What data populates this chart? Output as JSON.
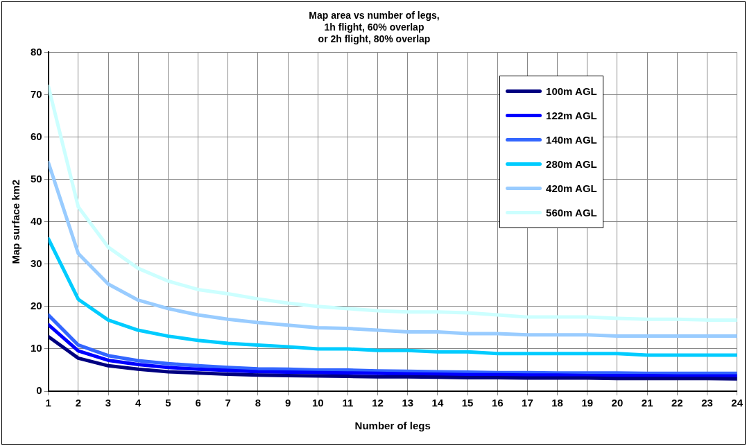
{
  "chart_data": {
    "type": "line",
    "title": "Map area vs number of legs,\n1h flight, 60% overlap\nor 2h flight, 80% overlap",
    "xlabel": "Number of legs",
    "ylabel": "Map surface km2",
    "x": [
      1,
      2,
      3,
      4,
      5,
      6,
      7,
      8,
      9,
      10,
      11,
      12,
      13,
      14,
      15,
      16,
      17,
      18,
      19,
      20,
      21,
      22,
      23,
      24
    ],
    "xlim": [
      1,
      24
    ],
    "xticks": [
      1,
      2,
      3,
      4,
      5,
      6,
      7,
      8,
      9,
      10,
      11,
      12,
      13,
      14,
      15,
      16,
      17,
      18,
      19,
      20,
      21,
      22,
      23,
      24
    ],
    "ylim": [
      0,
      80
    ],
    "yticks": [
      0,
      10,
      20,
      30,
      40,
      50,
      60,
      70,
      80
    ],
    "grid": true,
    "legend": "top right",
    "marker": "none",
    "line_style": "solid",
    "series": [
      {
        "name": "100m AGL",
        "color": "#000080",
        "values": [
          12.9,
          7.8,
          6.0,
          5.2,
          4.6,
          4.3,
          4.0,
          3.8,
          3.7,
          3.6,
          3.5,
          3.4,
          3.4,
          3.3,
          3.2,
          3.2,
          3.1,
          3.1,
          3.1,
          3.0,
          3.0,
          3.0,
          3.0,
          2.9
        ]
      },
      {
        "name": "122m AGL",
        "color": "#0000ff",
        "values": [
          15.7,
          9.5,
          7.3,
          6.3,
          5.6,
          5.2,
          4.9,
          4.6,
          4.5,
          4.4,
          4.3,
          4.2,
          4.1,
          4.0,
          3.9,
          3.9,
          3.8,
          3.8,
          3.7,
          3.7,
          3.7,
          3.6,
          3.6,
          3.6
        ]
      },
      {
        "name": "140m AGL",
        "color": "#3366ff",
        "values": [
          18,
          10.9,
          8.4,
          7.2,
          6.5,
          6.0,
          5.6,
          5.3,
          5.2,
          5.0,
          5.0,
          4.8,
          4.7,
          4.6,
          4.5,
          4.4,
          4.4,
          4.3,
          4.3,
          4.3,
          4.2,
          4.2,
          4.2,
          4.2
        ]
      },
      {
        "name": "280m AGL",
        "color": "#00ccff",
        "values": [
          36,
          21.7,
          16.8,
          14.4,
          13,
          12,
          11.3,
          10.9,
          10.5,
          10,
          10,
          9.6,
          9.6,
          9.3,
          9.3,
          8.9,
          8.9,
          8.9,
          8.9,
          8.9,
          8.5,
          8.5,
          8.5,
          8.5
        ]
      },
      {
        "name": "420m AGL",
        "color": "#99ccff",
        "values": [
          54,
          32.5,
          25.3,
          21.5,
          19.5,
          18,
          17,
          16.2,
          15.6,
          15,
          14.8,
          14.4,
          14,
          14,
          13.6,
          13.6,
          13.3,
          13.3,
          13.3,
          13,
          13,
          13,
          13,
          13
        ]
      },
      {
        "name": "560m AGL",
        "color": "#ccffff",
        "values": [
          72,
          43.5,
          34,
          29,
          26,
          24,
          23,
          21.8,
          20.8,
          20,
          19.5,
          19,
          18.7,
          18.7,
          18.5,
          18,
          17.5,
          17.5,
          17.5,
          17.2,
          17,
          17,
          16.8,
          16.8
        ]
      }
    ]
  }
}
